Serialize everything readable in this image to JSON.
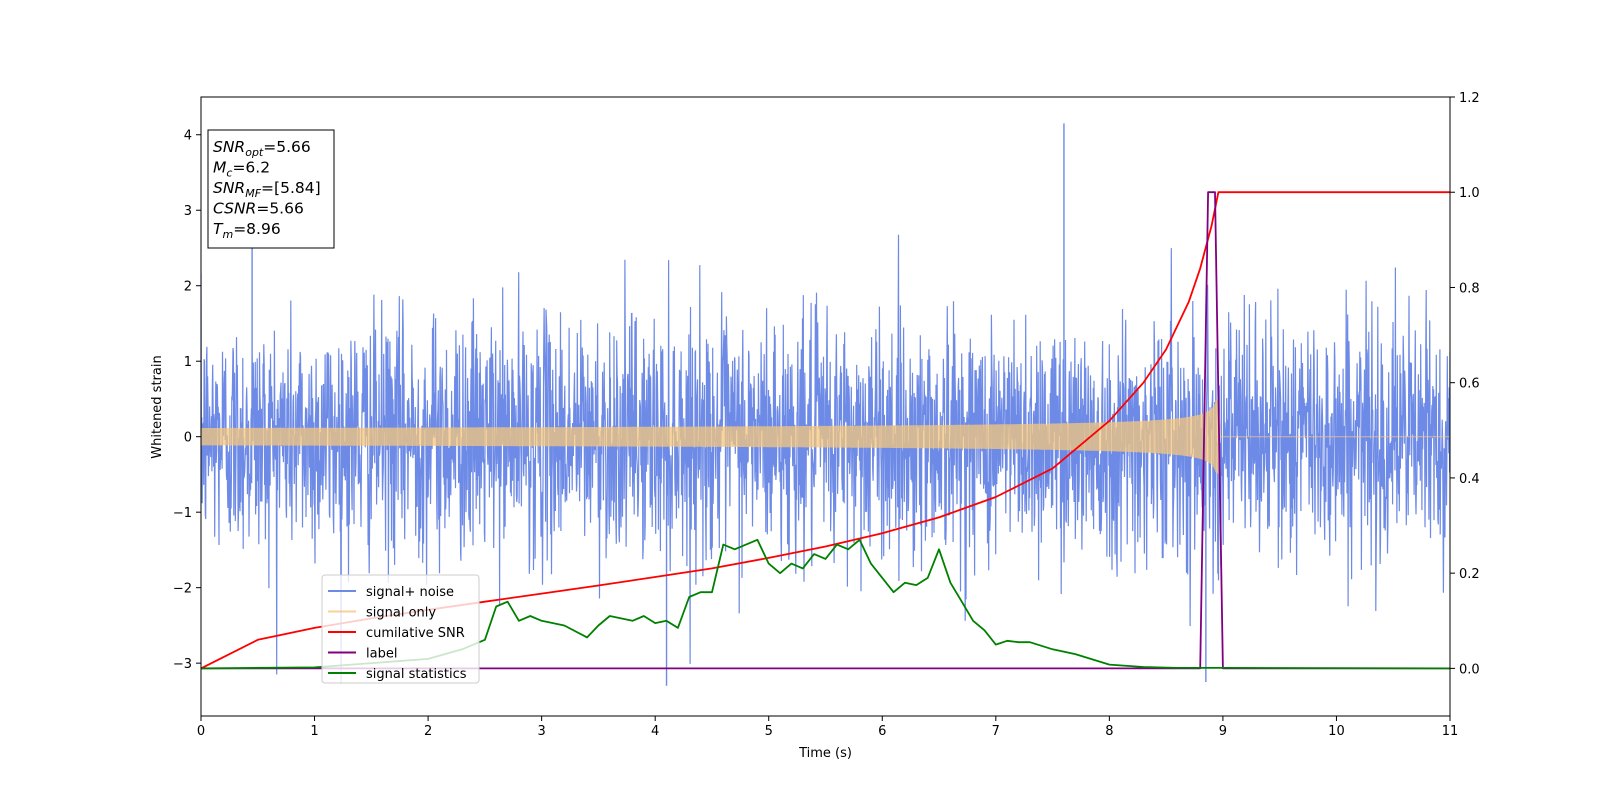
{
  "chart_data": {
    "type": "line",
    "xlabel": "Time (s)",
    "ylabel": "Whitened strain",
    "xlim": [
      0,
      11
    ],
    "ylim": [
      -3.7,
      4.5
    ],
    "y2lim": [
      -0.1,
      1.2
    ],
    "x_ticks": [
      0,
      1,
      2,
      3,
      4,
      5,
      6,
      7,
      8,
      9,
      10,
      11
    ],
    "y_ticks": [
      -3,
      -2,
      -1,
      0,
      1,
      2,
      3,
      4
    ],
    "y2_ticks": [
      0.0,
      0.2,
      0.4,
      0.6,
      0.8,
      1.0,
      1.2
    ],
    "grid": false,
    "legend_position": "lower-left",
    "annotation": {
      "lines": [
        {
          "sym": "SNR",
          "sub": "opt",
          "value": "=5.66"
        },
        {
          "sym": "M",
          "sub": "c",
          "value": "=6.2"
        },
        {
          "sym": "SNR",
          "sub": "MF",
          "value": "=[5.84]"
        },
        {
          "sym": "CSNR",
          "sub": "",
          "value": "=5.66"
        },
        {
          "sym": "T",
          "sub": "m",
          "value": "=8.96"
        }
      ]
    },
    "series": [
      {
        "name": "signal+ noise",
        "color": "#6d8ae6",
        "axis": "left",
        "kind": "noise",
        "typical_envelope": [
          -2.0,
          2.2
        ],
        "x_end": 11,
        "spikes_x": [
          0.45,
          4.1,
          7.6,
          8.85
        ]
      },
      {
        "name": "signal only",
        "color": "#f5c77e",
        "axis": "left",
        "kind": "chirp",
        "merger_time": 8.96,
        "peak_amplitude": 0.5
      },
      {
        "name": "cumilative SNR",
        "color": "#ff0000",
        "axis": "right",
        "x": [
          0,
          0.5,
          1,
          1.5,
          2,
          2.5,
          3,
          3.5,
          4,
          4.5,
          5,
          5.5,
          6,
          6.5,
          7,
          7.5,
          8,
          8.3,
          8.5,
          8.7,
          8.8,
          8.9,
          8.96,
          9,
          11
        ],
        "y": [
          0.0,
          0.06,
          0.085,
          0.105,
          0.123,
          0.14,
          0.157,
          0.174,
          0.192,
          0.21,
          0.232,
          0.256,
          0.284,
          0.317,
          0.36,
          0.42,
          0.52,
          0.6,
          0.67,
          0.77,
          0.84,
          0.93,
          1.0,
          1.0,
          1.0
        ]
      },
      {
        "name": "label",
        "color": "#800080",
        "axis": "right",
        "x": [
          0,
          8.8,
          8.87,
          8.93,
          9.0,
          11
        ],
        "y": [
          0,
          0,
          1,
          1,
          0,
          0
        ]
      },
      {
        "name": "signal statistics",
        "color": "#008000",
        "axis": "right",
        "x": [
          0,
          1,
          2,
          2.3,
          2.5,
          2.6,
          2.7,
          2.8,
          2.9,
          3.0,
          3.2,
          3.4,
          3.5,
          3.6,
          3.7,
          3.8,
          3.9,
          4.0,
          4.1,
          4.2,
          4.3,
          4.4,
          4.5,
          4.6,
          4.7,
          4.8,
          4.9,
          5.0,
          5.1,
          5.2,
          5.3,
          5.4,
          5.5,
          5.6,
          5.7,
          5.8,
          5.9,
          6.0,
          6.1,
          6.2,
          6.3,
          6.4,
          6.5,
          6.6,
          6.7,
          6.8,
          6.9,
          7.0,
          7.1,
          7.2,
          7.3,
          7.5,
          7.7,
          8.0,
          8.3,
          8.6,
          9.0,
          11
        ],
        "y": [
          0,
          0.002,
          0.02,
          0.04,
          0.06,
          0.13,
          0.14,
          0.1,
          0.11,
          0.1,
          0.09,
          0.065,
          0.09,
          0.11,
          0.105,
          0.1,
          0.11,
          0.095,
          0.1,
          0.085,
          0.15,
          0.16,
          0.16,
          0.26,
          0.25,
          0.26,
          0.27,
          0.22,
          0.2,
          0.22,
          0.21,
          0.24,
          0.23,
          0.26,
          0.25,
          0.27,
          0.22,
          0.19,
          0.16,
          0.18,
          0.175,
          0.19,
          0.25,
          0.18,
          0.14,
          0.1,
          0.08,
          0.05,
          0.058,
          0.055,
          0.055,
          0.04,
          0.03,
          0.008,
          0.003,
          0.001,
          0.001,
          0
        ]
      }
    ]
  }
}
